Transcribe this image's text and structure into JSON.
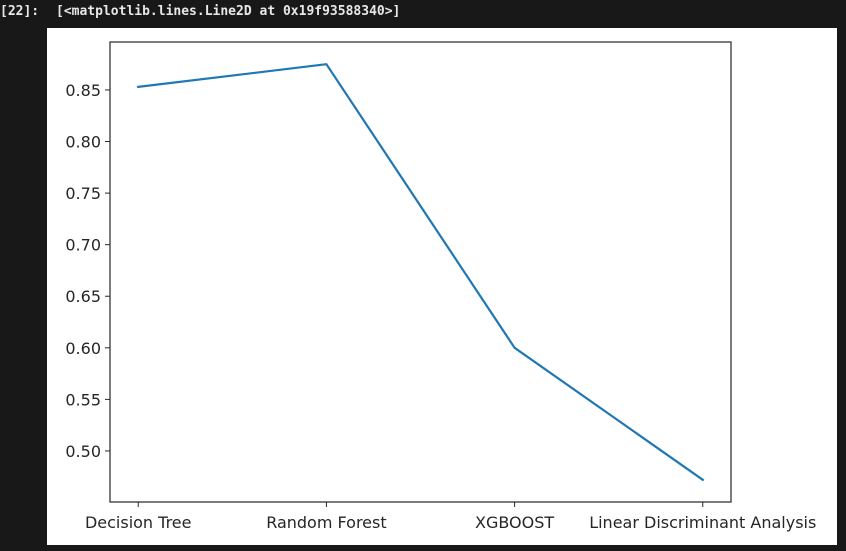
{
  "cell": {
    "prompt": "[22]:",
    "output_text": "[<matplotlib.lines.Line2D at 0x19f93588340>]"
  },
  "chart_data": {
    "type": "line",
    "categories": [
      "Decision Tree",
      "Random Forest",
      "XGBOOST",
      "Linear Discriminant Analysis"
    ],
    "series": [
      {
        "values": [
          0.853,
          0.875,
          0.6,
          0.472
        ],
        "color": "#1f77b4"
      }
    ],
    "yticks": [
      0.5,
      0.55,
      0.6,
      0.65,
      0.7,
      0.75,
      0.8,
      0.85
    ],
    "ytick_labels": [
      "0.50",
      "0.55",
      "0.60",
      "0.65",
      "0.70",
      "0.75",
      "0.80",
      "0.85"
    ],
    "ylim": [
      0.4505,
      0.8965
    ],
    "xlim": [
      -0.15,
      3.15
    ],
    "grid": false,
    "title": "",
    "xlabel": "",
    "ylabel": ""
  }
}
